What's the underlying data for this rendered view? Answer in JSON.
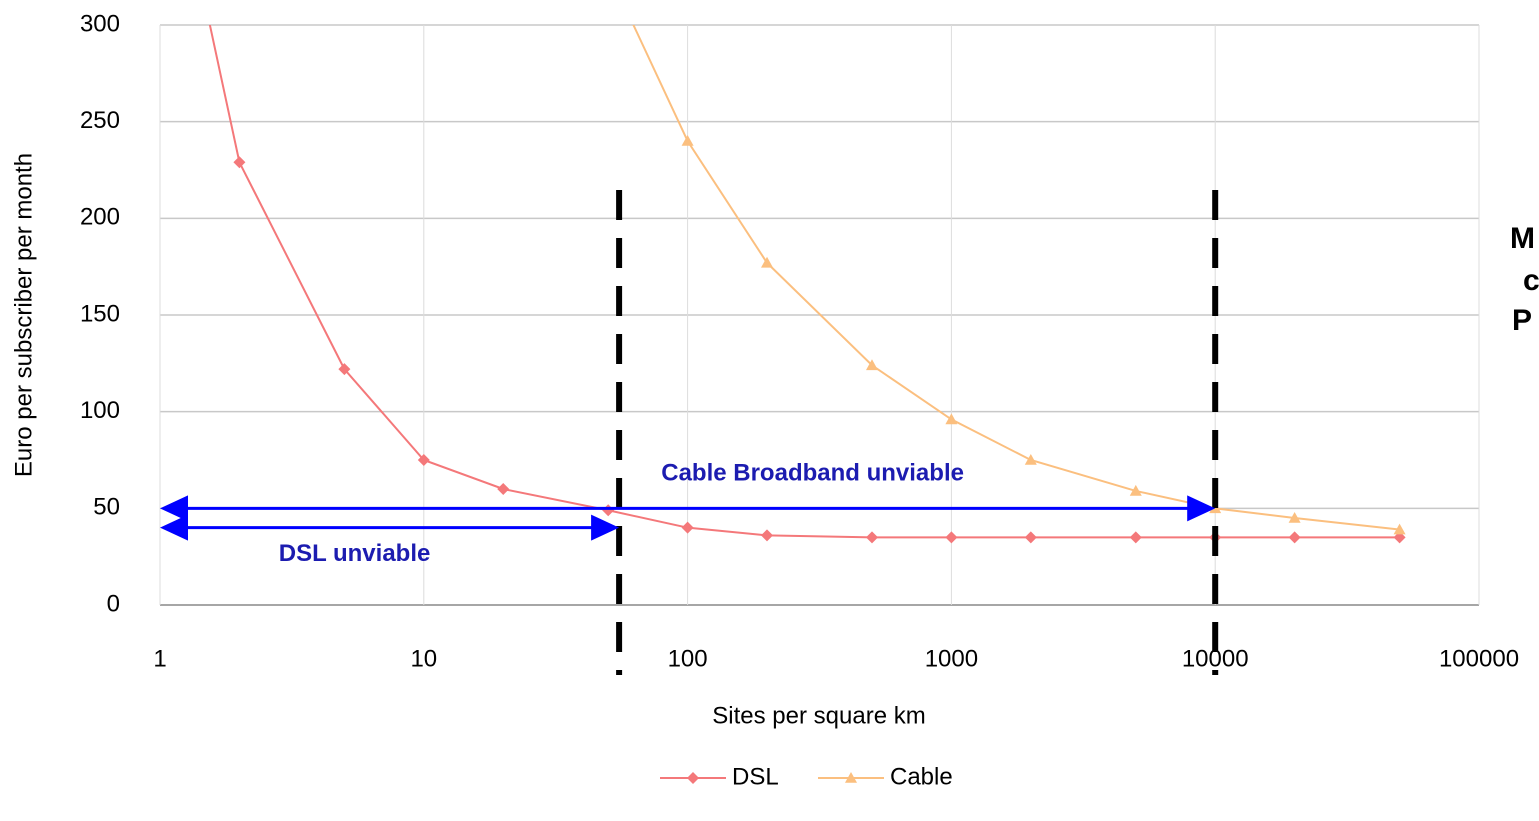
{
  "chart_data": {
    "type": "line",
    "x": [
      1,
      2,
      5,
      10,
      20,
      50,
      100,
      200,
      500,
      1000,
      2000,
      5000,
      10000,
      20000,
      50000
    ],
    "series": [
      {
        "name": "DSL",
        "color": "#f4787a",
        "marker": "diamond",
        "values": [
          420,
          229,
          122,
          75,
          60,
          49,
          40,
          36,
          35,
          35,
          35,
          35,
          35,
          35,
          35
        ]
      },
      {
        "name": "Cable",
        "color": "#fbbf7f",
        "marker": "triangle",
        "values": [
          null,
          null,
          null,
          null,
          null,
          328,
          240,
          177,
          124,
          96,
          75,
          59,
          50,
          45,
          39
        ]
      }
    ],
    "xlabel": "Sites per square km",
    "ylabel": "Euro per subscriber per month",
    "xlim": [
      1,
      100000
    ],
    "xticks": [
      1,
      10,
      100,
      1000,
      10000,
      100000
    ],
    "xscale": "log",
    "ylim": [
      0,
      300
    ],
    "yticks": [
      0,
      50,
      100,
      150,
      200,
      250,
      300
    ],
    "grid": true,
    "legend": "bottom",
    "vlines": [
      55,
      10000
    ],
    "arrows": [
      {
        "label": "Cable Broadband unviable",
        "x": [
          1,
          10000
        ],
        "y": 50
      },
      {
        "label": "DSL unviable",
        "x": [
          1,
          55
        ],
        "y": 40
      }
    ],
    "side_text": [
      "M",
      "c",
      "P"
    ]
  }
}
